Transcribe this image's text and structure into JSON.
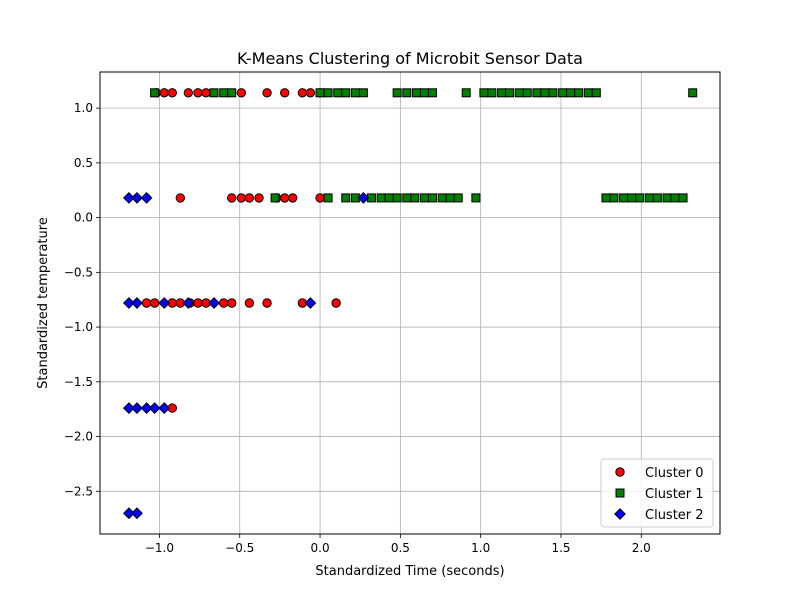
{
  "chart_data": {
    "type": "scatter",
    "title": "K-Means Clustering of Microbit Sensor Data",
    "xlabel": "Standardized Time (seconds)",
    "ylabel": "Standardized temperature",
    "xlim": [
      -1.37,
      2.49
    ],
    "ylim": [
      -2.89,
      1.33
    ],
    "xticks": [
      -1.0,
      -0.5,
      0.0,
      0.5,
      1.0,
      1.5,
      2.0
    ],
    "yticks": [
      -2.5,
      -2.0,
      -1.5,
      -1.0,
      -0.5,
      0.0,
      0.5,
      1.0
    ],
    "xtick_labels": [
      "−1.0",
      "−0.5",
      "0.0",
      "0.5",
      "1.0",
      "1.5",
      "2.0"
    ],
    "ytick_labels": [
      "−2.5",
      "−2.0",
      "−1.5",
      "−1.0",
      "−0.5",
      "0.0",
      "0.5",
      "1.0"
    ],
    "grid": true,
    "legend_position": "lower-right",
    "series": [
      {
        "name": "Cluster 0",
        "marker": "circle",
        "color": "#ff0000",
        "points": [
          [
            -1.02,
            1.14
          ],
          [
            -0.97,
            1.14
          ],
          [
            -0.92,
            1.14
          ],
          [
            -0.82,
            1.14
          ],
          [
            -0.76,
            1.14
          ],
          [
            -0.71,
            1.14
          ],
          [
            -0.49,
            1.14
          ],
          [
            -0.33,
            1.14
          ],
          [
            -0.22,
            1.14
          ],
          [
            -0.11,
            1.14
          ],
          [
            -0.06,
            1.14
          ],
          [
            0.0,
            1.14
          ],
          [
            -0.87,
            0.18
          ],
          [
            -0.55,
            0.18
          ],
          [
            -0.49,
            0.18
          ],
          [
            -0.44,
            0.18
          ],
          [
            -0.38,
            0.18
          ],
          [
            -0.27,
            0.18
          ],
          [
            -0.22,
            0.18
          ],
          [
            -0.17,
            0.18
          ],
          [
            0.0,
            0.18
          ],
          [
            -1.08,
            -0.78
          ],
          [
            -1.03,
            -0.78
          ],
          [
            -0.92,
            -0.78
          ],
          [
            -0.87,
            -0.78
          ],
          [
            -0.81,
            -0.78
          ],
          [
            -0.76,
            -0.78
          ],
          [
            -0.71,
            -0.78
          ],
          [
            -0.6,
            -0.78
          ],
          [
            -0.55,
            -0.78
          ],
          [
            -0.44,
            -0.78
          ],
          [
            -0.33,
            -0.78
          ],
          [
            -0.11,
            -0.78
          ],
          [
            0.1,
            -0.78
          ],
          [
            -0.92,
            -1.74
          ]
        ]
      },
      {
        "name": "Cluster 1",
        "marker": "square",
        "color": "#008000",
        "points": [
          [
            -1.03,
            1.14
          ],
          [
            -0.66,
            1.14
          ],
          [
            -0.6,
            1.14
          ],
          [
            -0.55,
            1.14
          ],
          [
            0.0,
            1.14
          ],
          [
            0.05,
            1.14
          ],
          [
            0.11,
            1.14
          ],
          [
            0.16,
            1.14
          ],
          [
            0.22,
            1.14
          ],
          [
            0.27,
            1.14
          ],
          [
            0.48,
            1.14
          ],
          [
            0.54,
            1.14
          ],
          [
            0.6,
            1.14
          ],
          [
            0.65,
            1.14
          ],
          [
            0.7,
            1.14
          ],
          [
            0.91,
            1.14
          ],
          [
            1.02,
            1.14
          ],
          [
            1.07,
            1.14
          ],
          [
            1.13,
            1.14
          ],
          [
            1.18,
            1.14
          ],
          [
            1.24,
            1.14
          ],
          [
            1.29,
            1.14
          ],
          [
            1.35,
            1.14
          ],
          [
            1.4,
            1.14
          ],
          [
            1.45,
            1.14
          ],
          [
            1.51,
            1.14
          ],
          [
            1.56,
            1.14
          ],
          [
            1.61,
            1.14
          ],
          [
            1.67,
            1.14
          ],
          [
            1.72,
            1.14
          ],
          [
            2.32,
            1.14
          ],
          [
            -0.28,
            0.18
          ],
          [
            0.05,
            0.18
          ],
          [
            0.16,
            0.18
          ],
          [
            0.22,
            0.18
          ],
          [
            0.32,
            0.18
          ],
          [
            0.38,
            0.18
          ],
          [
            0.43,
            0.18
          ],
          [
            0.48,
            0.18
          ],
          [
            0.54,
            0.18
          ],
          [
            0.59,
            0.18
          ],
          [
            0.65,
            0.18
          ],
          [
            0.7,
            0.18
          ],
          [
            0.76,
            0.18
          ],
          [
            0.81,
            0.18
          ],
          [
            0.86,
            0.18
          ],
          [
            0.97,
            0.18
          ],
          [
            1.78,
            0.18
          ],
          [
            1.83,
            0.18
          ],
          [
            1.89,
            0.18
          ],
          [
            1.94,
            0.18
          ],
          [
            1.99,
            0.18
          ],
          [
            2.05,
            0.18
          ],
          [
            2.1,
            0.18
          ],
          [
            2.16,
            0.18
          ],
          [
            2.21,
            0.18
          ],
          [
            2.26,
            0.18
          ]
        ]
      },
      {
        "name": "Cluster 2",
        "marker": "diamond",
        "color": "#0000ff",
        "points": [
          [
            -1.19,
            0.18
          ],
          [
            -1.14,
            0.18
          ],
          [
            -1.08,
            0.18
          ],
          [
            0.27,
            0.18
          ],
          [
            -1.19,
            -0.78
          ],
          [
            -1.14,
            -0.78
          ],
          [
            -0.97,
            -0.78
          ],
          [
            -0.82,
            -0.78
          ],
          [
            -0.66,
            -0.78
          ],
          [
            -0.06,
            -0.78
          ],
          [
            -1.19,
            -1.74
          ],
          [
            -1.14,
            -1.74
          ],
          [
            -1.08,
            -1.74
          ],
          [
            -1.03,
            -1.74
          ],
          [
            -0.97,
            -1.74
          ],
          [
            -1.19,
            -2.7
          ],
          [
            -1.14,
            -2.7
          ]
        ]
      }
    ]
  }
}
